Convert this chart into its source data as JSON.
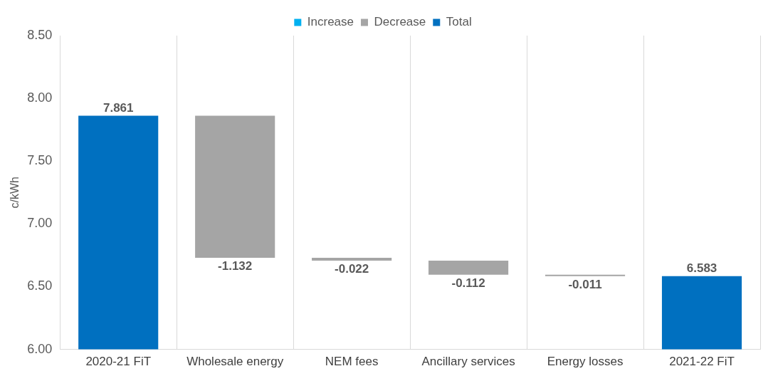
{
  "chart_data": {
    "type": "bar",
    "ylabel": "c/kWh",
    "categories": [
      "2020-21 FiT",
      "Wholesale energy",
      "NEM fees",
      "Ancillary services",
      "Energy losses",
      "2021-22 FiT"
    ],
    "series": [
      {
        "name": "Increase",
        "color": "#00b0f0",
        "values": [
          null,
          null,
          null,
          null,
          null,
          null
        ]
      },
      {
        "name": "Decrease",
        "color": "#a5a5a5",
        "values": [
          null,
          -1.132,
          -0.022,
          -0.112,
          -0.011,
          null
        ],
        "base": [
          null,
          7.861,
          6.729,
          6.707,
          6.595,
          null
        ]
      },
      {
        "name": "Total",
        "color": "#0070c0",
        "values": [
          7.861,
          null,
          null,
          null,
          null,
          6.583
        ]
      }
    ],
    "ylim": [
      6,
      8.5
    ],
    "yticks": [
      {
        "value": 6,
        "label": "6.00"
      },
      {
        "value": 6.5,
        "label": "6.50"
      },
      {
        "value": 7,
        "label": "7.00"
      },
      {
        "value": 7.5,
        "label": "7.50"
      },
      {
        "value": 8,
        "label": "8.00"
      },
      {
        "value": 8.5,
        "label": "8.50"
      }
    ],
    "grid": "x",
    "legend": "top",
    "data_labels": true
  }
}
